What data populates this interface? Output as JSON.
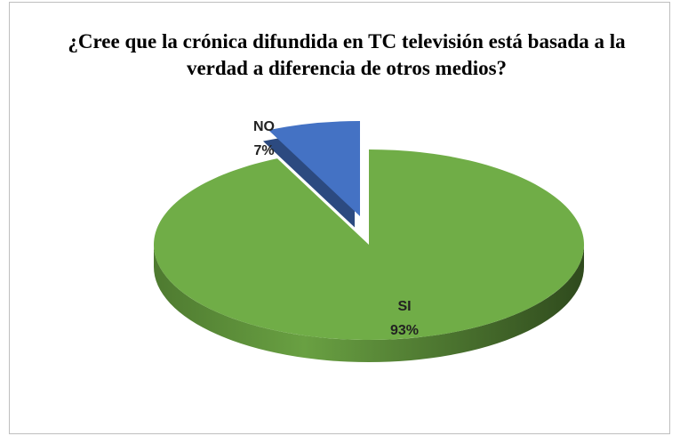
{
  "chart_data": {
    "type": "pie",
    "title": "¿Cree que la crónica difundida en TC televisión está basada a la verdad a diferencia de otros medios?",
    "categories": [
      "SI",
      "NO"
    ],
    "values": [
      93,
      7
    ],
    "value_labels": [
      "93%",
      "7%"
    ],
    "colors": [
      "#70ad47",
      "#4472c4"
    ]
  }
}
